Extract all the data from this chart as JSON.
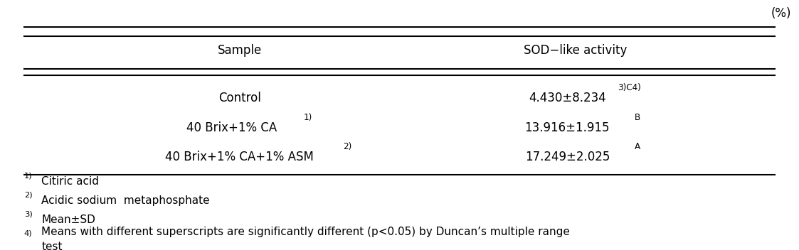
{
  "percent_label": "(%)",
  "col_headers": [
    "Sample",
    "SOD−like activity"
  ],
  "rows": [
    [
      "Control",
      "4.430±8.234",
      "3)C4)"
    ],
    [
      "40 Brix+1% CA",
      "13.916±1.915",
      "B",
      "1)"
    ],
    [
      "40 Brix+1% CA+1% ASM",
      "17.249±2.025",
      "A",
      "2)"
    ]
  ],
  "footnotes": [
    "1)Citiric acid",
    "2)Acidic sodium  metaphosphate",
    "3)Mean±SD",
    "4)Means with different superscripts are significantly different (p<0.05) by Duncan’s multiple range test"
  ],
  "font_size": 12,
  "footnote_font_size": 11,
  "text_color": "#000000",
  "bg_color": "#ffffff"
}
